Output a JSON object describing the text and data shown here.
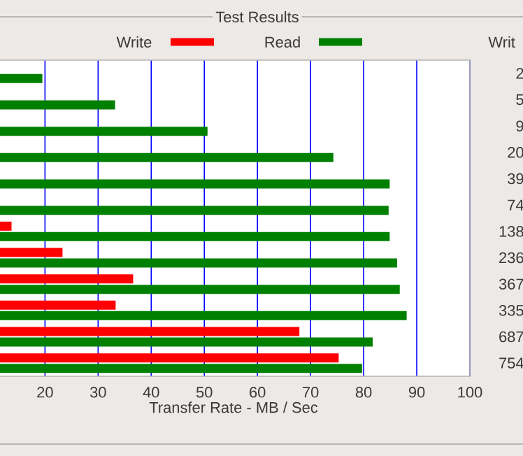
{
  "chart_data": {
    "type": "bar",
    "orientation": "horizontal",
    "title": "Test Results",
    "xlabel": "Transfer Rate - MB / Sec",
    "categories": [
      null,
      null,
      null,
      null,
      null,
      null,
      null,
      null,
      null,
      null,
      null,
      null
    ],
    "series": [
      {
        "name": "Write",
        "color": "#ff0000",
        "values": [
          null,
          null,
          null,
          null,
          null,
          null,
          13.7,
          23.3,
          36.6,
          33.3,
          67.9,
          75.3
        ]
      },
      {
        "name": "Read",
        "color": "#008000",
        "values": [
          19.5,
          33.2,
          50.6,
          74.3,
          84.9,
          84.7,
          84.9,
          86.3,
          86.8,
          88.1,
          81.7,
          79.7
        ]
      }
    ],
    "xlim": [
      11,
      100
    ],
    "xticks": [
      20,
      30,
      40,
      50,
      60,
      70,
      80,
      90,
      100
    ],
    "grid": "x",
    "legend": "top",
    "annotations": [
      "Writ",
      "2",
      "5",
      "9",
      "20",
      "39",
      "74",
      "138",
      "236",
      "367",
      "335",
      "687",
      "754"
    ]
  }
}
